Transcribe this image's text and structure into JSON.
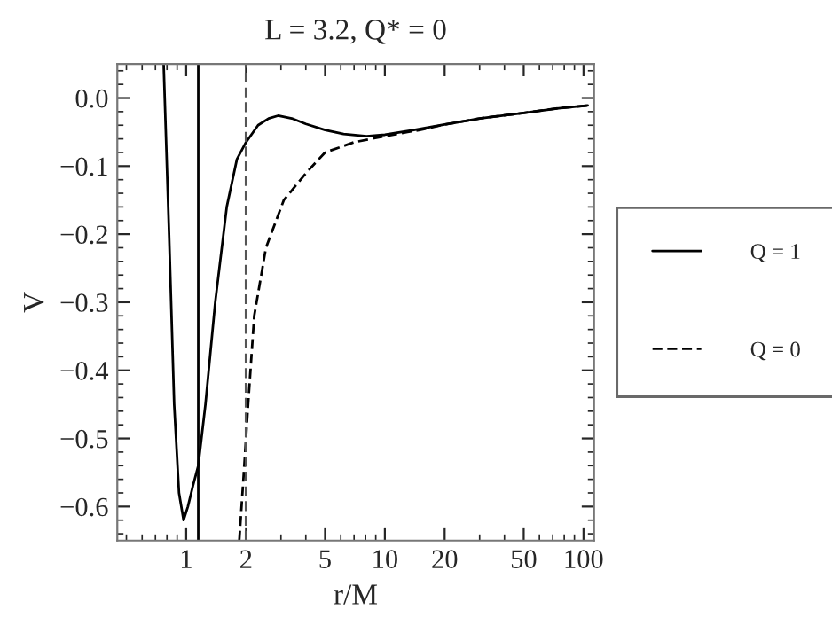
{
  "chart_data": {
    "type": "line",
    "title": "L = 3.2, Q* = 0",
    "xlabel": "r/M",
    "ylabel": "V",
    "log": "x",
    "xlim": [
      0.45,
      113
    ],
    "xticks": [
      1,
      2,
      5,
      10,
      20,
      50,
      100
    ],
    "ylim": [
      -0.65,
      0.05
    ],
    "yticks": [
      {
        "value": 0,
        "label": "0.0"
      },
      {
        "value": -0.1,
        "label": "−0.1"
      },
      {
        "value": -0.2,
        "label": "−0.2"
      },
      {
        "value": -0.3,
        "label": "−0.3"
      },
      {
        "value": -0.4,
        "label": "−0.4"
      },
      {
        "value": -0.5,
        "label": "−0.5"
      },
      {
        "value": -0.6,
        "label": "−0.6"
      }
    ],
    "series": [
      {
        "name": "Q = 1",
        "color": "#000000",
        "line_style": "solid",
        "x": [
          0.77,
          0.82,
          0.87,
          0.92,
          0.97,
          1.02,
          1.08,
          1.15,
          1.25,
          1.4,
          1.6,
          1.8,
          2.0,
          2.3,
          2.6,
          2.9,
          3.4,
          4.0,
          5.0,
          6.2,
          8.1,
          10,
          14,
          20,
          30,
          50,
          75,
          105
        ],
        "values": [
          0.05,
          -0.2,
          -0.45,
          -0.58,
          -0.62,
          -0.6,
          -0.57,
          -0.54,
          -0.45,
          -0.3,
          -0.16,
          -0.09,
          -0.065,
          -0.04,
          -0.03,
          -0.026,
          -0.03,
          -0.038,
          -0.047,
          -0.053,
          -0.056,
          -0.054,
          -0.047,
          -0.039,
          -0.03,
          -0.022,
          -0.015,
          -0.011
        ]
      },
      {
        "name": "Q = 0",
        "color": "#000000",
        "line_style": "dashed",
        "x": [
          1.85,
          1.95,
          2.05,
          2.2,
          2.52,
          3.1,
          4.07,
          5.0,
          7.0,
          10,
          13,
          15,
          20,
          30,
          50,
          75,
          105
        ],
        "values": [
          -0.65,
          -0.55,
          -0.45,
          -0.32,
          -0.22,
          -0.15,
          -0.108,
          -0.08,
          -0.065,
          -0.056,
          -0.05,
          -0.047,
          -0.039,
          -0.03,
          -0.022,
          -0.015,
          -0.011
        ]
      }
    ],
    "ref_lines": [
      {
        "axis": "x",
        "value": 1.15,
        "color": "#000000",
        "line_style": "solid"
      },
      {
        "axis": "x",
        "value": 2,
        "color": "#555555",
        "line_style": "dashed"
      }
    ],
    "legend": "right",
    "grid": false
  }
}
